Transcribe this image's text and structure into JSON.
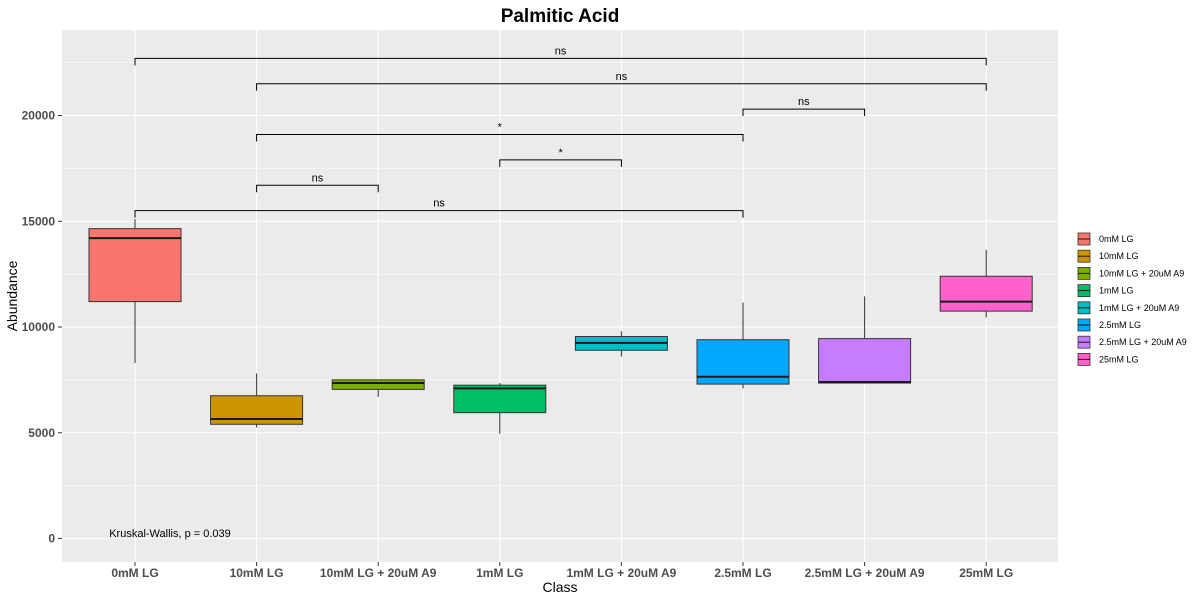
{
  "chart_data": {
    "type": "box",
    "title": "Palmitic Acid",
    "xlabel": "Class",
    "ylabel": "Abundance",
    "ylim": [
      -1000,
      24000
    ],
    "yticks": [
      0,
      5000,
      10000,
      15000,
      20000
    ],
    "ytick_labels": [
      "0",
      "5000",
      "10000",
      "15000",
      "20000"
    ],
    "categories": [
      "0mM LG",
      "10mM LG",
      "10mM LG + 20uM A9",
      "1mM LG",
      "1mM LG + 20uM A9",
      "2.5mM LG",
      "2.5mM LG + 20uM A9",
      "25mM LG"
    ],
    "colors": [
      "#F8766D",
      "#CD9600",
      "#7CAE00",
      "#00BE67",
      "#00BFC4",
      "#00A9FF",
      "#C77CFF",
      "#FF61CC"
    ],
    "boxes": [
      {
        "name": "0mM LG",
        "whisker_low": 8300,
        "q1": 11200,
        "median": 14200,
        "q3": 14650,
        "whisker_high": 15100
      },
      {
        "name": "10mM LG",
        "whisker_low": 5250,
        "q1": 5400,
        "median": 5650,
        "q3": 6750,
        "whisker_high": 7800
      },
      {
        "name": "10mM LG + 20uM A9",
        "whisker_low": 6700,
        "q1": 7050,
        "median": 7350,
        "q3": 7500,
        "whisker_high": 7500
      },
      {
        "name": "1mM LG",
        "whisker_low": 4950,
        "q1": 5950,
        "median": 7100,
        "q3": 7250,
        "whisker_high": 7350
      },
      {
        "name": "1mM LG + 20uM A9",
        "whisker_low": 8600,
        "q1": 8900,
        "median": 9250,
        "q3": 9550,
        "whisker_high": 9800
      },
      {
        "name": "2.5mM LG",
        "whisker_low": 7100,
        "q1": 7300,
        "median": 7650,
        "q3": 9400,
        "whisker_high": 11150
      },
      {
        "name": "2.5mM LG + 20uM A9",
        "whisker_low": 7350,
        "q1": 7350,
        "median": 7400,
        "q3": 9450,
        "whisker_high": 11450
      },
      {
        "name": "25mM LG",
        "whisker_low": 10450,
        "q1": 10750,
        "median": 11200,
        "q3": 12400,
        "whisker_high": 13650
      }
    ],
    "comparisons": [
      {
        "from": "0mM LG",
        "to": "25mM LG",
        "y": 22700,
        "label": "ns"
      },
      {
        "from": "10mM LG",
        "to": "25mM LG",
        "y": 21500,
        "label": "ns"
      },
      {
        "from": "2.5mM LG",
        "to": "2.5mM LG + 20uM A9",
        "y": 20300,
        "label": "ns"
      },
      {
        "from": "10mM LG",
        "to": "2.5mM LG",
        "y": 19100,
        "label": "*"
      },
      {
        "from": "1mM LG",
        "to": "1mM LG + 20uM A9",
        "y": 17900,
        "label": "*"
      },
      {
        "from": "10mM LG",
        "to": "10mM LG + 20uM A9",
        "y": 16700,
        "label": "ns"
      },
      {
        "from": "0mM LG",
        "to": "2.5mM LG",
        "y": 15500,
        "label": "ns"
      }
    ],
    "annotation": "Kruskal-Wallis, p = 0.039",
    "legend_position": "right",
    "panel_background": "#EBEBEB",
    "grid": true
  }
}
